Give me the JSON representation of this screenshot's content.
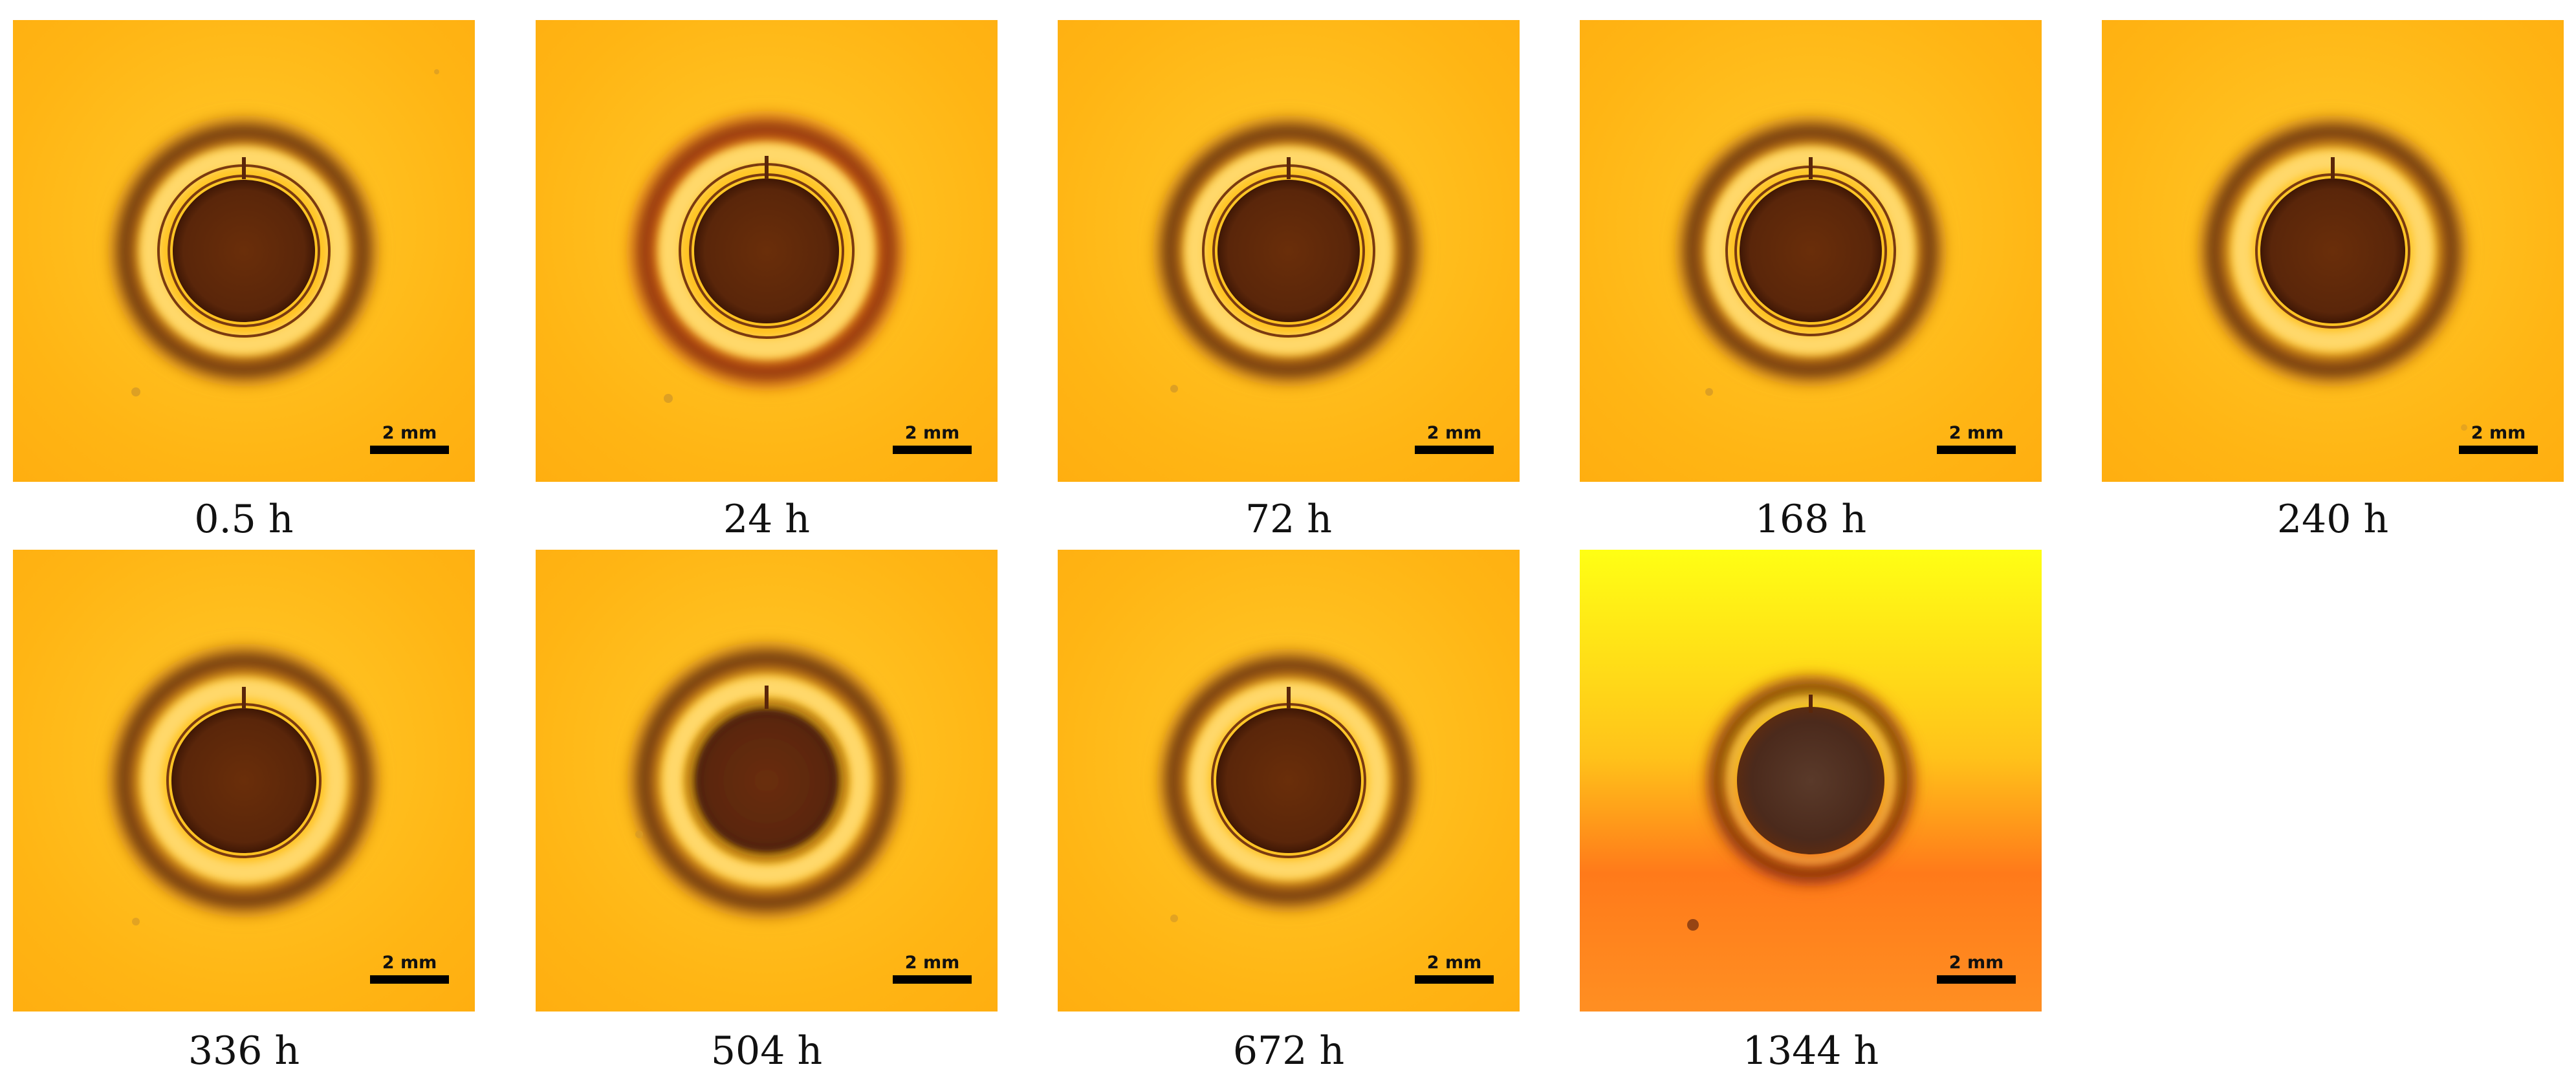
{
  "scale_bar_label": "2 mm",
  "panels": [
    {
      "label": "0.5 h",
      "variant": "two-rings"
    },
    {
      "label": "24 h",
      "variant": "two-rings-red"
    },
    {
      "label": "72 h",
      "variant": "two-rings"
    },
    {
      "label": "168 h",
      "variant": "two-rings"
    },
    {
      "label": "240 h",
      "variant": "one-ring"
    },
    {
      "label": "336 h",
      "variant": "one-ring"
    },
    {
      "label": "504 h",
      "variant": "one-ring-blur"
    },
    {
      "label": "672 h",
      "variant": "one-ring"
    },
    {
      "label": "1344 h",
      "variant": "degraded-gradient"
    }
  ],
  "colors": {
    "background_yellow": "#ffc21a",
    "halo_dark": "#3b1b06",
    "ring_light": "#ffd24a",
    "core_brown": "#6a2e0a",
    "core_dark": "#4a1f06",
    "degraded_top": "#ffff14",
    "degraded_bottom": "#ff7a1a"
  }
}
